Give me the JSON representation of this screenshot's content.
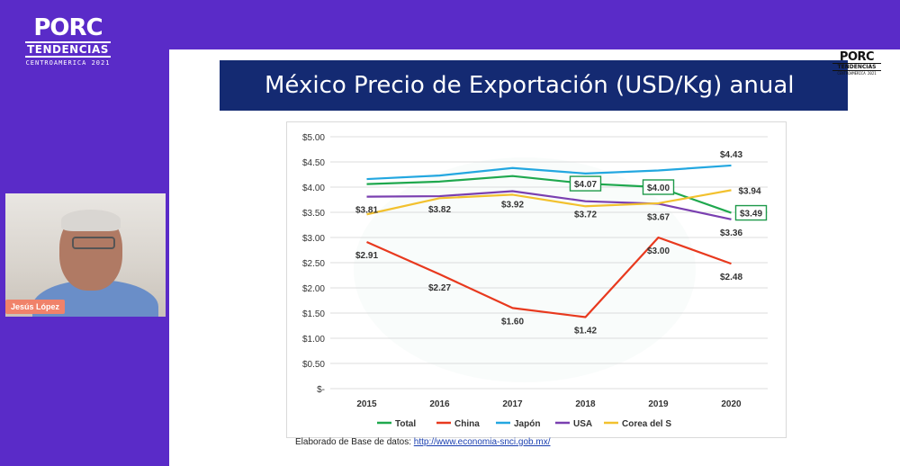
{
  "brand": {
    "porc": "PORC",
    "tendencias": "TENDENCIAS",
    "sub": "CENTROAMERICA 2021"
  },
  "slide": {
    "title": "México Precio de Exportación (USD/Kg) anual",
    "source_label": "Elaborado de Base de datos:",
    "source_link": "http://www.economia-snci.gob.mx/"
  },
  "presenter": {
    "name": "Jesús López"
  },
  "chart_data": {
    "type": "line",
    "title": "México Precio de Exportación (USD/Kg) anual",
    "categories": [
      "2015",
      "2016",
      "2017",
      "2018",
      "2019",
      "2020"
    ],
    "y_tick_labels": [
      "$-",
      "$0.50",
      "$1.00",
      "$1.50",
      "$2.00",
      "$2.50",
      "$3.00",
      "$3.50",
      "$4.00",
      "$4.50",
      "$5.00"
    ],
    "ylim": [
      0,
      5
    ],
    "grid": true,
    "legend": "bottom",
    "series": [
      {
        "name": "Total",
        "color": "#1fa84e",
        "values": [
          4.06,
          4.11,
          4.22,
          4.07,
          4.0,
          3.49
        ]
      },
      {
        "name": "China",
        "color": "#e8391e",
        "values": [
          2.91,
          2.27,
          1.6,
          1.42,
          3.0,
          2.48
        ]
      },
      {
        "name": "Japón",
        "color": "#23a7e0",
        "values": [
          4.16,
          4.23,
          4.38,
          4.27,
          4.33,
          4.43
        ]
      },
      {
        "name": "USA",
        "color": "#7a3fb0",
        "values": [
          3.81,
          3.82,
          3.92,
          3.72,
          3.67,
          3.36
        ]
      },
      {
        "name": "Corea del S",
        "color": "#f2c12e",
        "values": [
          3.46,
          3.78,
          3.85,
          3.62,
          3.68,
          3.94
        ]
      }
    ],
    "data_labels": [
      {
        "series": "USA",
        "index": 0,
        "text": "$3.81",
        "pos": "below"
      },
      {
        "series": "USA",
        "index": 1,
        "text": "$3.82",
        "pos": "below"
      },
      {
        "series": "USA",
        "index": 2,
        "text": "$3.92",
        "pos": "below"
      },
      {
        "series": "USA",
        "index": 3,
        "text": "$3.72",
        "pos": "below"
      },
      {
        "series": "USA",
        "index": 4,
        "text": "$3.67",
        "pos": "below"
      },
      {
        "series": "USA",
        "index": 5,
        "text": "$3.36",
        "pos": "below"
      },
      {
        "series": "Japón",
        "index": 5,
        "text": "$4.43",
        "pos": "above"
      },
      {
        "series": "Corea del S",
        "index": 5,
        "text": "$3.94",
        "pos": "right"
      },
      {
        "series": "Total",
        "index": 3,
        "text": "$4.07",
        "pos": "center",
        "boxed": true
      },
      {
        "series": "Total",
        "index": 4,
        "text": "$4.00",
        "pos": "center",
        "boxed": true
      },
      {
        "series": "Total",
        "index": 5,
        "text": "$3.49",
        "pos": "right",
        "boxed": true
      },
      {
        "series": "China",
        "index": 0,
        "text": "$2.91",
        "pos": "below"
      },
      {
        "series": "China",
        "index": 1,
        "text": "$2.27",
        "pos": "below"
      },
      {
        "series": "China",
        "index": 2,
        "text": "$1.60",
        "pos": "below"
      },
      {
        "series": "China",
        "index": 3,
        "text": "$1.42",
        "pos": "below"
      },
      {
        "series": "China",
        "index": 4,
        "text": "$3.00",
        "pos": "below"
      },
      {
        "series": "China",
        "index": 5,
        "text": "$2.48",
        "pos": "below"
      }
    ],
    "box_color": "#1e9a4a"
  }
}
